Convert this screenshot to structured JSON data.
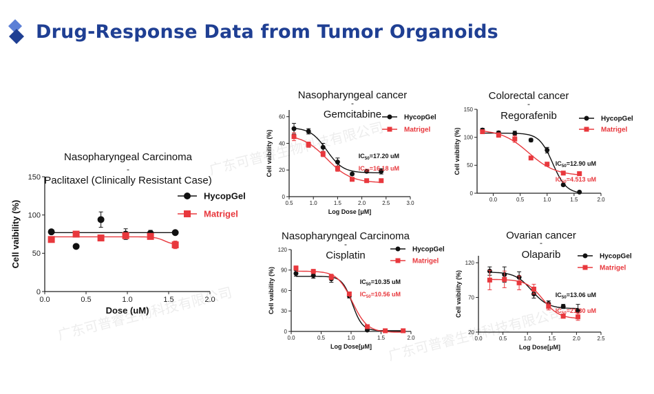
{
  "page": {
    "title": "Drug-Response Data from Tumor Organoids",
    "accent_color": "#1f3f93",
    "icon": "diamond-icon",
    "watermark": "广东可普睿生物科技有限公司"
  },
  "chart_data": [
    {
      "type": "line",
      "title_lines": [
        "Nasopharyngeal Carcinoma",
        "-",
        "Paclitaxel (Clinically Resistant Case)"
      ],
      "xlabel": "Dose (uM)",
      "ylabel": "Cell vaibility (%)",
      "xlim": [
        0,
        2.0
      ],
      "ylim": [
        0,
        150
      ],
      "xticks": [
        "0.0",
        "0.5",
        "1.0",
        "1.5",
        "2.0"
      ],
      "yticks": [
        "0",
        "50",
        "100",
        "150"
      ],
      "legend_position": "right",
      "ic50": [],
      "series": [
        {
          "name": "HycopGel",
          "color": "#111111",
          "marker": "circle",
          "x": [
            0.08,
            0.38,
            0.68,
            0.98,
            1.28,
            1.58
          ],
          "y": [
            78,
            59,
            94,
            75,
            76,
            77
          ],
          "err": [
            2,
            3,
            10,
            7,
            4,
            2
          ]
        },
        {
          "name": "Matrigel",
          "color": "#e8383d",
          "marker": "square",
          "x": [
            0.08,
            0.38,
            0.68,
            0.98,
            1.28,
            1.58
          ],
          "y": [
            68,
            75,
            70,
            73,
            72,
            61
          ],
          "err": [
            2,
            2,
            2,
            3,
            2,
            5
          ]
        }
      ]
    },
    {
      "type": "line",
      "title_lines": [
        "Nasopharyngeal cancer",
        "-",
        "Gemcitabine"
      ],
      "xlabel": "Log Dose [μM]",
      "ylabel": "Cell vaibility (%)",
      "xlim": [
        0.5,
        3.0
      ],
      "ylim": [
        0,
        65
      ],
      "xticks": [
        "0.5",
        "1.0",
        "1.5",
        "2.0",
        "2.5",
        "3.0"
      ],
      "yticks": [
        "0",
        "20",
        "40",
        "60"
      ],
      "legend_position": "top-right",
      "ic50": [
        {
          "label": "IC50=17.20 uM",
          "color": "#111111"
        },
        {
          "label": "IC50=16.18 uM",
          "color": "#e8383d"
        }
      ],
      "series": [
        {
          "name": "HycopGel",
          "color": "#111111",
          "marker": "circle",
          "x": [
            0.6,
            0.9,
            1.2,
            1.5,
            1.8,
            2.1,
            2.4
          ],
          "y": [
            51,
            49,
            37,
            26,
            17,
            19,
            19
          ],
          "err": [
            4,
            2,
            3,
            3,
            1,
            1,
            2
          ]
        },
        {
          "name": "Matrigel",
          "color": "#e8383d",
          "marker": "square",
          "x": [
            0.6,
            0.9,
            1.2,
            1.5,
            1.8,
            2.1,
            2.4
          ],
          "y": [
            45,
            39,
            32,
            21,
            13,
            12,
            12
          ],
          "err": [
            3,
            2,
            2,
            2,
            1,
            1,
            1
          ]
        }
      ]
    },
    {
      "type": "line",
      "title_lines": [
        "Colorectal cancer",
        "-",
        "Regorafenib"
      ],
      "xlabel": "",
      "ylabel": "Cell vaibility (%)",
      "xlim": [
        -0.3,
        2.0
      ],
      "ylim": [
        0,
        150
      ],
      "xticks": [
        "0.0",
        "0.5",
        "1.0",
        "1.5",
        "2.0"
      ],
      "yticks": [
        "0",
        "50",
        "100",
        "150"
      ],
      "legend_position": "top-right",
      "ic50": [
        {
          "label": "IC50=12.90 uM",
          "color": "#111111"
        },
        {
          "label": "IC50=4.513 uM",
          "color": "#e8383d"
        }
      ],
      "series": [
        {
          "name": "HycopGel",
          "color": "#111111",
          "marker": "circle",
          "x": [
            -0.2,
            0.1,
            0.4,
            0.7,
            1.0,
            1.3,
            1.6
          ],
          "y": [
            113,
            108,
            107,
            95,
            77,
            15,
            2
          ],
          "err": [
            3,
            3,
            4,
            3,
            5,
            2,
            1
          ]
        },
        {
          "name": "Matrigel",
          "color": "#e8383d",
          "marker": "square",
          "x": [
            -0.2,
            0.1,
            0.4,
            0.7,
            1.0,
            1.3,
            1.6
          ],
          "y": [
            110,
            104,
            97,
            63,
            52,
            36,
            35
          ],
          "err": [
            3,
            4,
            6,
            3,
            3,
            2,
            2
          ]
        }
      ]
    },
    {
      "type": "line",
      "title_lines": [
        "Nasopharyngeal Carcinoma",
        "-",
        "Cisplatin"
      ],
      "xlabel": "Log Dose[μM]",
      "ylabel": "Cell vaibility (%)",
      "xlim": [
        0,
        2.0
      ],
      "ylim": [
        0,
        120
      ],
      "xticks": [
        "0.0",
        "0.5",
        "1.0",
        "1.5",
        "2.0"
      ],
      "yticks": [
        "0",
        "30",
        "60",
        "90",
        "120"
      ],
      "legend_position": "top-right",
      "ic50": [
        {
          "label": "IC50=10.35 uM",
          "color": "#111111"
        },
        {
          "label": "IC50=10.56 uM",
          "color": "#e8383d"
        }
      ],
      "series": [
        {
          "name": "HycopGel",
          "color": "#111111",
          "marker": "circle",
          "x": [
            0.08,
            0.37,
            0.67,
            0.97,
            1.27,
            1.57,
            1.87
          ],
          "y": [
            85,
            82,
            77,
            52,
            2,
            1,
            1
          ],
          "err": [
            4,
            4,
            5,
            3,
            1,
            1,
            1
          ]
        },
        {
          "name": "Matrigel",
          "color": "#e8383d",
          "marker": "square",
          "x": [
            0.08,
            0.37,
            0.67,
            0.97,
            1.27,
            1.57,
            1.87
          ],
          "y": [
            93,
            88,
            80,
            55,
            7,
            1,
            1
          ],
          "err": [
            3,
            3,
            4,
            3,
            2,
            1,
            1
          ]
        }
      ]
    },
    {
      "type": "line",
      "title_lines": [
        "Ovarian cancer",
        "-",
        "Olaparib"
      ],
      "xlabel": "Log Dose[μM]",
      "ylabel": "Cell vaibility (%)",
      "xlim": [
        0,
        2.5
      ],
      "ylim": [
        20,
        130
      ],
      "xticks": [
        "0.0",
        "0.5",
        "1.0",
        "1.5",
        "2.0",
        "2.5"
      ],
      "yticks": [
        "20",
        "70",
        "120"
      ],
      "legend_position": "top-right",
      "ic50": [
        {
          "label": "IC50=13.06 uM",
          "color": "#111111"
        },
        {
          "label": "IC50=21.30 uM",
          "color": "#e8383d"
        }
      ],
      "series": [
        {
          "name": "HycopGel",
          "color": "#111111",
          "marker": "circle",
          "x": [
            0.23,
            0.53,
            0.83,
            1.13,
            1.43,
            1.73,
            2.03
          ],
          "y": [
            108,
            103,
            99,
            75,
            61,
            57,
            51
          ],
          "err": [
            6,
            11,
            8,
            6,
            4,
            3,
            9
          ]
        },
        {
          "name": "Matrigel",
          "color": "#e8383d",
          "marker": "square",
          "x": [
            0.23,
            0.53,
            0.83,
            1.13,
            1.43,
            1.73,
            2.03
          ],
          "y": [
            95,
            96,
            91,
            82,
            57,
            43,
            42
          ],
          "err": [
            14,
            12,
            10,
            7,
            5,
            3,
            5
          ]
        }
      ]
    }
  ]
}
